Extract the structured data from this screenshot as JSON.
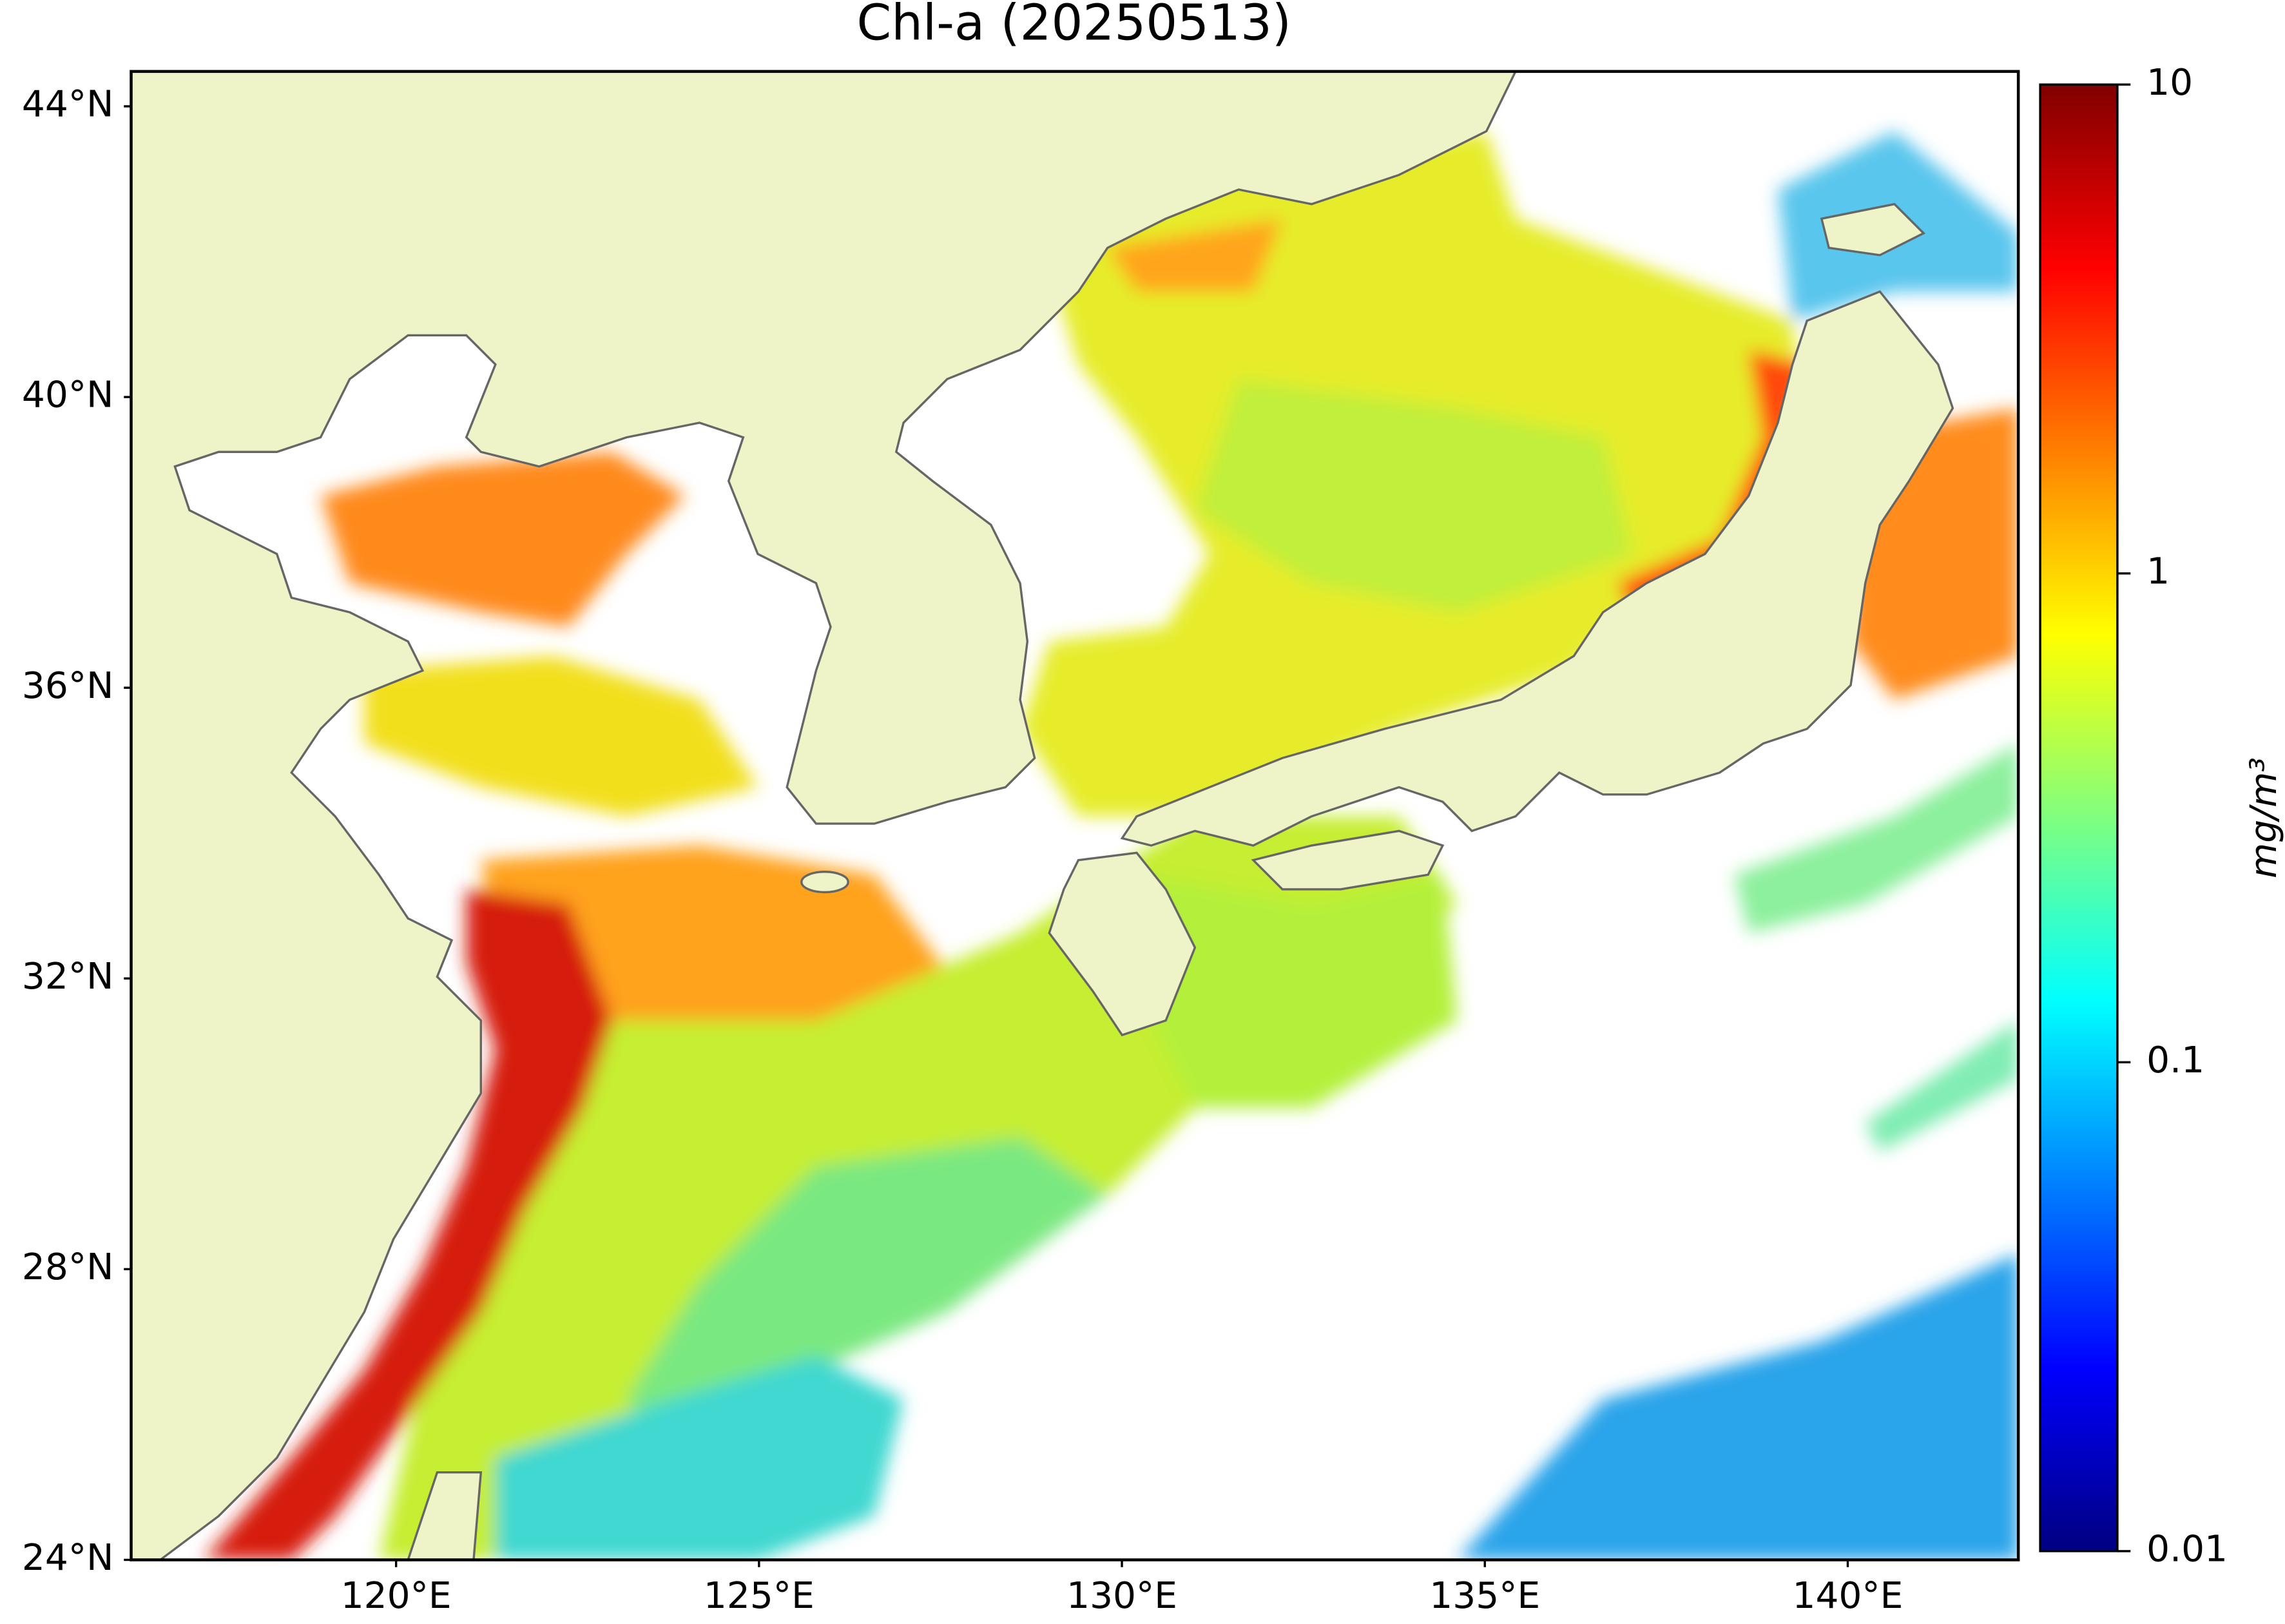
{
  "title": "Chl-a (20250513)",
  "map": {
    "xlim": [
      116.35,
      142.35
    ],
    "ylim": [
      24,
      44.48
    ],
    "xticks": [
      {
        "value": 120,
        "label": "120°E"
      },
      {
        "value": 125,
        "label": "125°E"
      },
      {
        "value": 130,
        "label": "130°E"
      },
      {
        "value": 135,
        "label": "135°E"
      },
      {
        "value": 140,
        "label": "140°E"
      }
    ],
    "yticks": [
      {
        "value": 24,
        "label": "24°N"
      },
      {
        "value": 28,
        "label": "28°N"
      },
      {
        "value": 32,
        "label": "32°N"
      },
      {
        "value": 36,
        "label": "36°N"
      },
      {
        "value": 40,
        "label": "40°N"
      },
      {
        "value": 44,
        "label": "44°N"
      }
    ]
  },
  "colorbar": {
    "scale": "log",
    "colormap": "jet",
    "lim": [
      0.01,
      10
    ],
    "ticks": [
      0.01,
      0.1,
      1,
      10
    ],
    "label": "mg/m³"
  }
}
